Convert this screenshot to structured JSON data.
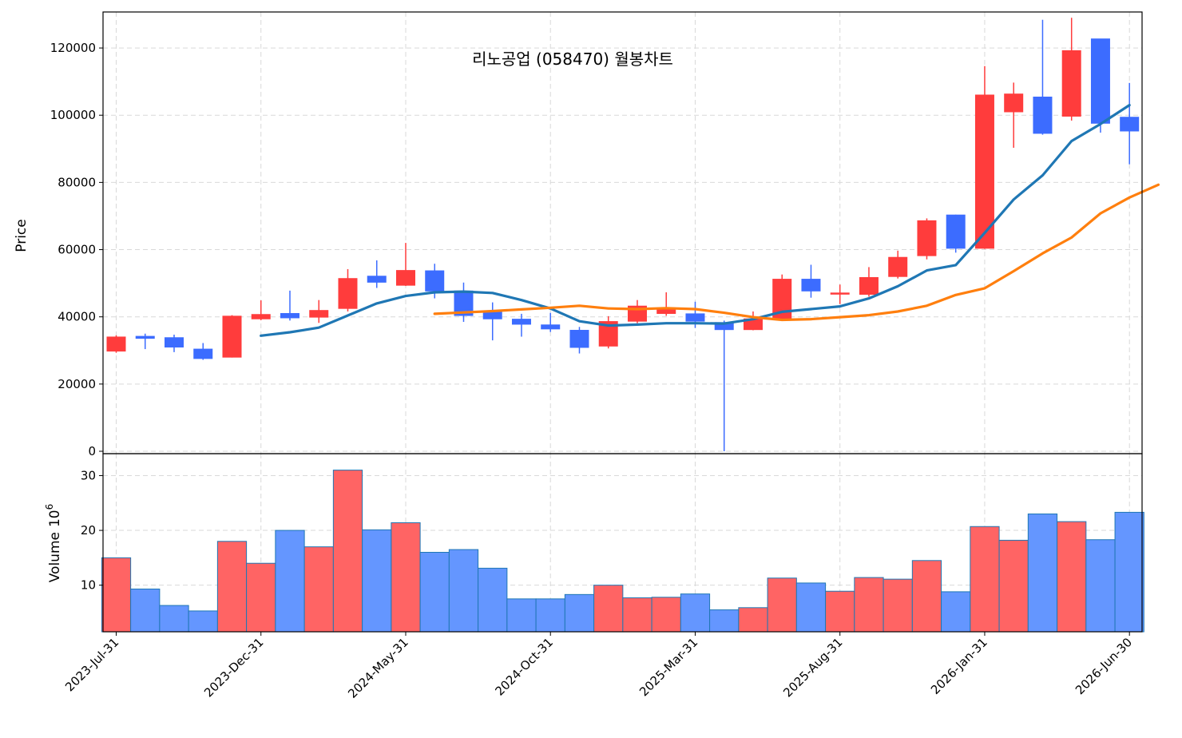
{
  "chart_data": {
    "type": "candlestick",
    "title": "리노공업 (058470) 월봉차트",
    "price_axis": {
      "label": "Price",
      "ylim": [
        0,
        130000
      ],
      "ticks": [
        0,
        20000,
        40000,
        60000,
        80000,
        100000,
        120000
      ]
    },
    "volume_axis": {
      "label": "Volume",
      "exponent": "6",
      "ylim": [
        1.5,
        34
      ],
      "ticks": [
        10,
        20,
        30
      ]
    },
    "x_tick_labels": [
      "2023-Jul-31",
      "2023-Dec-31",
      "2024-May-31",
      "2024-Oct-31",
      "2025-Mar-31",
      "2025-Aug-31",
      "2026-Jan-31",
      "2026-Jun-30"
    ],
    "x_tick_index": [
      0,
      5,
      10,
      15,
      20,
      25,
      30,
      35
    ],
    "grid": true,
    "colors": {
      "up": "#ff3c3c",
      "down": "#3c6cff",
      "up_volume": "#ff6464",
      "down_volume": "#6496ff",
      "volume_edge": "#1f77b4",
      "ma1": "#1f77b4",
      "ma2": "#ff7f0e"
    },
    "candles": [
      {
        "date": "2023-Jul-31",
        "open": 29800,
        "high": 34500,
        "low": 29300,
        "close": 34000,
        "volume": 15.0
      },
      {
        "date": "2023-Aug-31",
        "open": 34200,
        "high": 35000,
        "low": 30400,
        "close": 33600,
        "volume": 9.3
      },
      {
        "date": "2023-Sep-30",
        "open": 33800,
        "high": 34700,
        "low": 29500,
        "close": 31000,
        "volume": 6.3
      },
      {
        "date": "2023-Oct-31",
        "open": 30400,
        "high": 32200,
        "low": 27200,
        "close": 27600,
        "volume": 5.3
      },
      {
        "date": "2023-Nov-30",
        "open": 28000,
        "high": 40500,
        "low": 27900,
        "close": 40200,
        "volume": 18.0
      },
      {
        "date": "2023-Dec-31",
        "open": 39400,
        "high": 44900,
        "low": 39000,
        "close": 40700,
        "volume": 14.0
      },
      {
        "date": "2024-Jan-31",
        "open": 41000,
        "high": 47800,
        "low": 38900,
        "close": 39700,
        "volume": 20.0
      },
      {
        "date": "2024-Feb-29",
        "open": 39900,
        "high": 45000,
        "low": 38200,
        "close": 41900,
        "volume": 17.0
      },
      {
        "date": "2024-Mar-31",
        "open": 42500,
        "high": 54200,
        "low": 41600,
        "close": 51400,
        "volume": 31.0
      },
      {
        "date": "2024-Apr-30",
        "open": 52100,
        "high": 56800,
        "low": 48600,
        "close": 50300,
        "volume": 20.1
      },
      {
        "date": "2024-May-31",
        "open": 49400,
        "high": 62000,
        "low": 49200,
        "close": 53800,
        "volume": 21.4
      },
      {
        "date": "2024-Jun-30",
        "open": 53700,
        "high": 55800,
        "low": 45500,
        "close": 47700,
        "volume": 16.0
      },
      {
        "date": "2024-Jul-31",
        "open": 47700,
        "high": 50200,
        "low": 38500,
        "close": 40400,
        "volume": 16.5
      },
      {
        "date": "2024-Aug-31",
        "open": 41700,
        "high": 44300,
        "low": 33000,
        "close": 39400,
        "volume": 13.1
      },
      {
        "date": "2024-Sep-30",
        "open": 39300,
        "high": 40900,
        "low": 34100,
        "close": 37800,
        "volume": 7.5
      },
      {
        "date": "2024-Oct-31",
        "open": 37600,
        "high": 41200,
        "low": 35500,
        "close": 36400,
        "volume": 7.5
      },
      {
        "date": "2024-Nov-30",
        "open": 36000,
        "high": 37000,
        "low": 29100,
        "close": 30900,
        "volume": 8.3
      },
      {
        "date": "2024-Dec-31",
        "open": 31300,
        "high": 40200,
        "low": 30600,
        "close": 38600,
        "volume": 10.0
      },
      {
        "date": "2025-Jan-31",
        "open": 38700,
        "high": 45000,
        "low": 38100,
        "close": 43200,
        "volume": 7.7
      },
      {
        "date": "2025-Feb-28",
        "open": 41000,
        "high": 47300,
        "low": 40300,
        "close": 42200,
        "volume": 7.8
      },
      {
        "date": "2025-Mar-31",
        "open": 40900,
        "high": 44500,
        "low": 36700,
        "close": 38700,
        "volume": 8.4
      },
      {
        "date": "2025-Apr-30",
        "open": 38300,
        "high": 38900,
        "low": 0,
        "close": 36200,
        "volume": 5.5
      },
      {
        "date": "2025-May-31",
        "open": 36200,
        "high": 41600,
        "low": 36000,
        "close": 39400,
        "volume": 5.9
      },
      {
        "date": "2025-Jun-30",
        "open": 39500,
        "high": 52600,
        "low": 39300,
        "close": 51200,
        "volume": 11.3
      },
      {
        "date": "2025-Jul-31",
        "open": 51200,
        "high": 55500,
        "low": 45700,
        "close": 47700,
        "volume": 10.4
      },
      {
        "date": "2025-Aug-31",
        "open": 47000,
        "high": 49600,
        "low": 43800,
        "close": 47100,
        "volume": 8.9
      },
      {
        "date": "2025-Sep-30",
        "open": 46700,
        "high": 54800,
        "low": 46000,
        "close": 51700,
        "volume": 11.4
      },
      {
        "date": "2025-Oct-31",
        "open": 52000,
        "high": 59700,
        "low": 51400,
        "close": 57700,
        "volume": 11.1
      },
      {
        "date": "2025-Nov-30",
        "open": 58200,
        "high": 69300,
        "low": 57100,
        "close": 68600,
        "volume": 14.5
      },
      {
        "date": "2025-Dec-31",
        "open": 70300,
        "high": 70400,
        "low": 59100,
        "close": 60400,
        "volume": 8.8
      },
      {
        "date": "2026-Jan-31",
        "open": 60400,
        "high": 114600,
        "low": 60200,
        "close": 106000,
        "volume": 20.7
      },
      {
        "date": "2026-Feb-28",
        "open": 101000,
        "high": 109700,
        "low": 90300,
        "close": 106300,
        "volume": 18.2
      },
      {
        "date": "2026-Mar-31",
        "open": 105400,
        "high": 128400,
        "low": 94200,
        "close": 94600,
        "volume": 23.0
      },
      {
        "date": "2026-Apr-30",
        "open": 99700,
        "high": 129000,
        "low": 98400,
        "close": 119200,
        "volume": 21.6
      },
      {
        "date": "2026-May-31",
        "open": 122700,
        "high": 122700,
        "low": 94800,
        "close": 97600,
        "volume": 18.3
      },
      {
        "date": "2026-Jun-30",
        "open": 99400,
        "high": 109600,
        "low": 85400,
        "close": 95300,
        "volume": 23.3
      }
    ],
    "moving_averages": [
      {
        "start_index": 5,
        "values": [
          34400,
          35400,
          36800,
          40400,
          44000,
          46200,
          47300,
          47500,
          47100,
          45000,
          42500,
          38700,
          37400,
          37700,
          38100,
          38100,
          38000,
          39300,
          41500,
          42300,
          43100,
          45500,
          49100,
          53800,
          55400,
          65000,
          74900,
          82100,
          92300,
          97400,
          103000
        ]
      },
      {
        "start_index": 11,
        "values": [
          40900,
          41300,
          41700,
          42200,
          42700,
          43300,
          42500,
          42300,
          42600,
          42300,
          41200,
          39900,
          39100,
          39300,
          39900,
          40500,
          41600,
          43300,
          46500,
          48500,
          53600,
          58900,
          63600,
          70800,
          75500,
          79300
        ]
      }
    ]
  }
}
